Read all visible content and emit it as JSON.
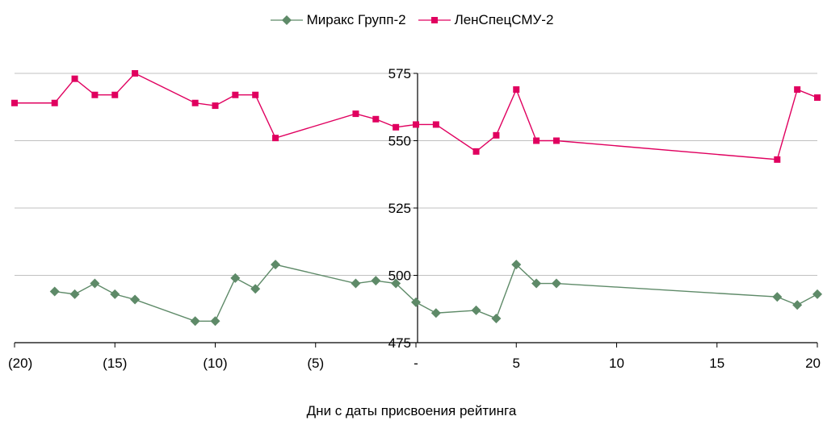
{
  "chart_data": {
    "type": "line",
    "xlabel": "Дни с даты присвоения рейтинга",
    "xlim": [
      -20,
      20
    ],
    "ylim": [
      475,
      575
    ],
    "x_ticks": [
      -20,
      -15,
      -10,
      -5,
      0,
      5,
      10,
      15,
      20
    ],
    "x_tick_labels": [
      "(20)",
      "(15)",
      "(10)",
      "(5)",
      "-",
      "5",
      "10",
      "15",
      "20"
    ],
    "y_ticks": [
      475,
      500,
      525,
      550,
      575
    ],
    "y_tick_labels": [
      "475",
      "500",
      "525",
      "550",
      "575"
    ],
    "grid": "horizontal",
    "legend_position": "top",
    "series": [
      {
        "name": "Миракс Групп-2",
        "color": "#5e8a68",
        "marker": "diamond",
        "points": [
          [
            -18,
            494
          ],
          [
            -17,
            493
          ],
          [
            -16,
            497
          ],
          [
            -15,
            493
          ],
          [
            -14,
            491
          ],
          [
            -11,
            483
          ],
          [
            -10,
            483
          ],
          [
            -9,
            499
          ],
          [
            -8,
            495
          ],
          [
            -7,
            504
          ],
          [
            -3,
            497
          ],
          [
            -2,
            498
          ],
          [
            -1,
            497
          ],
          [
            0,
            490
          ],
          [
            1,
            486
          ],
          [
            3,
            487
          ],
          [
            4,
            484
          ],
          [
            5,
            504
          ],
          [
            6,
            497
          ],
          [
            7,
            497
          ],
          [
            18,
            492
          ],
          [
            19,
            489
          ],
          [
            20,
            493
          ]
        ]
      },
      {
        "name": "ЛенСпецСМУ-2",
        "color": "#e0005f",
        "marker": "square",
        "points": [
          [
            -20,
            564
          ],
          [
            -18,
            564
          ],
          [
            -17,
            573
          ],
          [
            -16,
            567
          ],
          [
            -15,
            567
          ],
          [
            -14,
            575
          ],
          [
            -11,
            564
          ],
          [
            -10,
            563
          ],
          [
            -9,
            567
          ],
          [
            -8,
            567
          ],
          [
            -7,
            551
          ],
          [
            -3,
            560
          ],
          [
            -2,
            558
          ],
          [
            -1,
            555
          ],
          [
            0,
            556
          ],
          [
            1,
            556
          ],
          [
            3,
            546
          ],
          [
            4,
            552
          ],
          [
            5,
            569
          ],
          [
            6,
            550
          ],
          [
            7,
            550
          ],
          [
            18,
            543
          ],
          [
            19,
            569
          ],
          [
            20,
            566
          ]
        ]
      }
    ]
  }
}
